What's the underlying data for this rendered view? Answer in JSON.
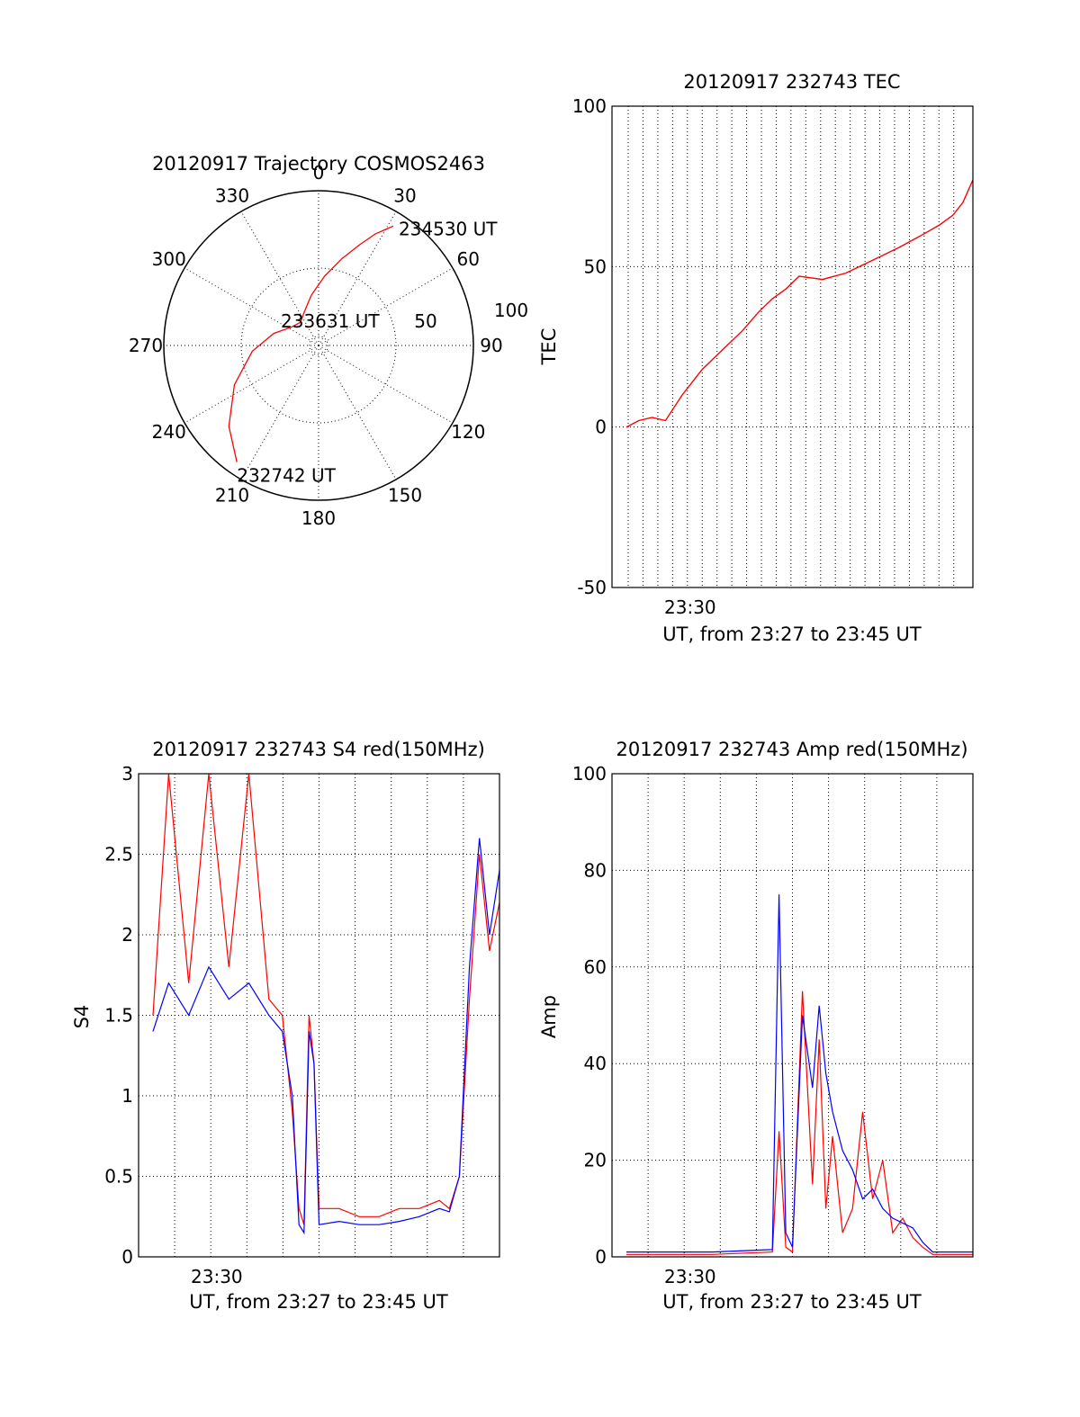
{
  "colors": {
    "red": "#ff0000",
    "blue": "#0000ff",
    "axis": "#000000"
  },
  "chart_data": [
    {
      "type": "polar",
      "title": "20120917 Trajectory COSMOS2463",
      "angle_labels": [
        "0",
        "30",
        "60",
        "90",
        "120",
        "150",
        "180",
        "210",
        "240",
        "270",
        "300",
        "330"
      ],
      "radius_labels": [
        "50",
        "100"
      ],
      "rlim": [
        0,
        100
      ],
      "grid": true,
      "series": [
        {
          "color": "red",
          "points": [
            [
              215,
              92
            ],
            [
              228,
              78
            ],
            [
              245,
              60
            ],
            [
              265,
              43
            ],
            [
              285,
              30
            ],
            [
              305,
              21
            ],
            [
              322,
              19
            ],
            [
              338,
              24
            ],
            [
              352,
              33
            ],
            [
              5,
              45
            ],
            [
              15,
              58
            ],
            [
              22,
              70
            ],
            [
              27,
              81
            ],
            [
              32,
              91
            ]
          ],
          "annotations": [
            {
              "text": "232742 UT",
              "az": 215,
              "r": 92
            },
            {
              "text": "233631 UT",
              "az": 315,
              "r": 4
            },
            {
              "text": "234530 UT",
              "az": 32,
              "r": 91
            }
          ]
        }
      ]
    },
    {
      "type": "line",
      "title": "20120917 232743 TEC",
      "xlabel": "UT, from 23:27 to 23:45 UT",
      "ylabel": "TEC",
      "xlim": [
        "23:27",
        "23:45"
      ],
      "ylim": [
        -50,
        100
      ],
      "yticks": [
        -50,
        0,
        50,
        100
      ],
      "xticks": [
        {
          "label": "23:30",
          "t": "23:30"
        }
      ],
      "grid": true,
      "series": [
        {
          "color": "red",
          "x": [
            "23:27:43",
            "23:28:20",
            "23:29:00",
            "23:29:40",
            "23:30:30",
            "23:31:30",
            "23:32:30",
            "23:33:30",
            "23:34:20",
            "23:35:00",
            "23:35:40",
            "23:36:20",
            "23:37:30",
            "23:38:40",
            "23:40:00",
            "23:41:20",
            "23:42:30",
            "23:43:20",
            "23:44:00",
            "23:44:30",
            "23:45:00"
          ],
          "y": [
            0,
            2,
            3,
            2,
            10,
            18,
            24,
            30,
            36,
            40,
            43,
            47,
            46,
            48,
            52,
            56,
            60,
            63,
            66,
            70,
            77
          ]
        }
      ]
    },
    {
      "type": "line",
      "title": "20120917 232743 S4 red(150MHz)",
      "xlabel": "UT, from 23:27 to 23:45 UT",
      "ylabel": "S4",
      "xlim": [
        "23:27",
        "23:45"
      ],
      "ylim": [
        0,
        3
      ],
      "yticks": [
        0,
        0.5,
        1,
        1.5,
        2,
        2.5,
        3
      ],
      "xticks": [
        {
          "label": "23:30",
          "t": "23:30"
        }
      ],
      "grid": true,
      "series": [
        {
          "color": "red",
          "x": [
            "23:27:43",
            "23:28:30",
            "23:29:30",
            "23:30:30",
            "23:31:30",
            "23:32:30",
            "23:33:30",
            "23:34:10",
            "23:34:40",
            "23:35:00",
            "23:35:15",
            "23:35:30",
            "23:35:45",
            "23:36:00",
            "23:37:00",
            "23:38:00",
            "23:39:00",
            "23:40:00",
            "23:41:00",
            "23:42:00",
            "23:42:30",
            "23:43:00",
            "23:43:30",
            "23:44:00",
            "23:44:30",
            "23:45:00"
          ],
          "y": [
            1.5,
            3.0,
            1.7,
            3.0,
            1.8,
            3.0,
            1.6,
            1.5,
            0.9,
            0.3,
            0.2,
            1.5,
            1.2,
            0.3,
            0.3,
            0.25,
            0.25,
            0.3,
            0.3,
            0.35,
            0.3,
            0.5,
            1.6,
            2.5,
            1.9,
            2.2
          ]
        },
        {
          "color": "blue",
          "x": [
            "23:27:43",
            "23:28:30",
            "23:29:30",
            "23:30:30",
            "23:31:30",
            "23:32:30",
            "23:33:30",
            "23:34:10",
            "23:34:40",
            "23:35:00",
            "23:35:15",
            "23:35:30",
            "23:35:45",
            "23:36:00",
            "23:37:00",
            "23:38:00",
            "23:39:00",
            "23:40:00",
            "23:41:00",
            "23:42:00",
            "23:42:30",
            "23:43:00",
            "23:43:30",
            "23:44:00",
            "23:44:30",
            "23:45:00"
          ],
          "y": [
            1.4,
            1.7,
            1.5,
            1.8,
            1.6,
            1.7,
            1.5,
            1.4,
            1.0,
            0.2,
            0.15,
            1.4,
            1.2,
            0.2,
            0.22,
            0.2,
            0.2,
            0.22,
            0.25,
            0.3,
            0.28,
            0.5,
            1.8,
            2.6,
            2.0,
            2.4
          ]
        }
      ]
    },
    {
      "type": "line",
      "title": "20120917 232743 Amp red(150MHz)",
      "xlabel": "UT, from 23:27 to 23:45 UT",
      "ylabel": "Amp",
      "xlim": [
        "23:27",
        "23:45"
      ],
      "ylim": [
        0,
        100
      ],
      "yticks": [
        0,
        20,
        40,
        60,
        80,
        100
      ],
      "xticks": [
        {
          "label": "23:30",
          "t": "23:30"
        }
      ],
      "grid": true,
      "series": [
        {
          "color": "red",
          "x": [
            "23:27:43",
            "23:30:00",
            "23:32:00",
            "23:35:00",
            "23:35:20",
            "23:35:40",
            "23:36:00",
            "23:36:30",
            "23:37:00",
            "23:37:20",
            "23:37:40",
            "23:38:00",
            "23:38:30",
            "23:39:00",
            "23:39:30",
            "23:40:00",
            "23:40:30",
            "23:41:00",
            "23:41:30",
            "23:42:00",
            "23:42:30",
            "23:43:00",
            "23:45:00"
          ],
          "y": [
            0.5,
            0.5,
            0.5,
            1,
            26,
            2,
            1,
            55,
            15,
            45,
            10,
            25,
            5,
            10,
            30,
            12,
            20,
            5,
            8,
            4,
            2,
            0.5,
            0.5
          ]
        },
        {
          "color": "blue",
          "x": [
            "23:27:43",
            "23:30:00",
            "23:32:00",
            "23:35:00",
            "23:35:20",
            "23:35:40",
            "23:36:00",
            "23:36:30",
            "23:37:00",
            "23:37:20",
            "23:37:40",
            "23:38:00",
            "23:38:30",
            "23:39:00",
            "23:39:30",
            "23:40:00",
            "23:40:30",
            "23:41:00",
            "23:41:30",
            "23:42:00",
            "23:42:30",
            "23:43:00",
            "23:45:00"
          ],
          "y": [
            1,
            1,
            1,
            1.5,
            75,
            5,
            2,
            50,
            35,
            52,
            38,
            30,
            22,
            18,
            12,
            14,
            10,
            8,
            7,
            6,
            3,
            1,
            1
          ]
        }
      ]
    }
  ]
}
